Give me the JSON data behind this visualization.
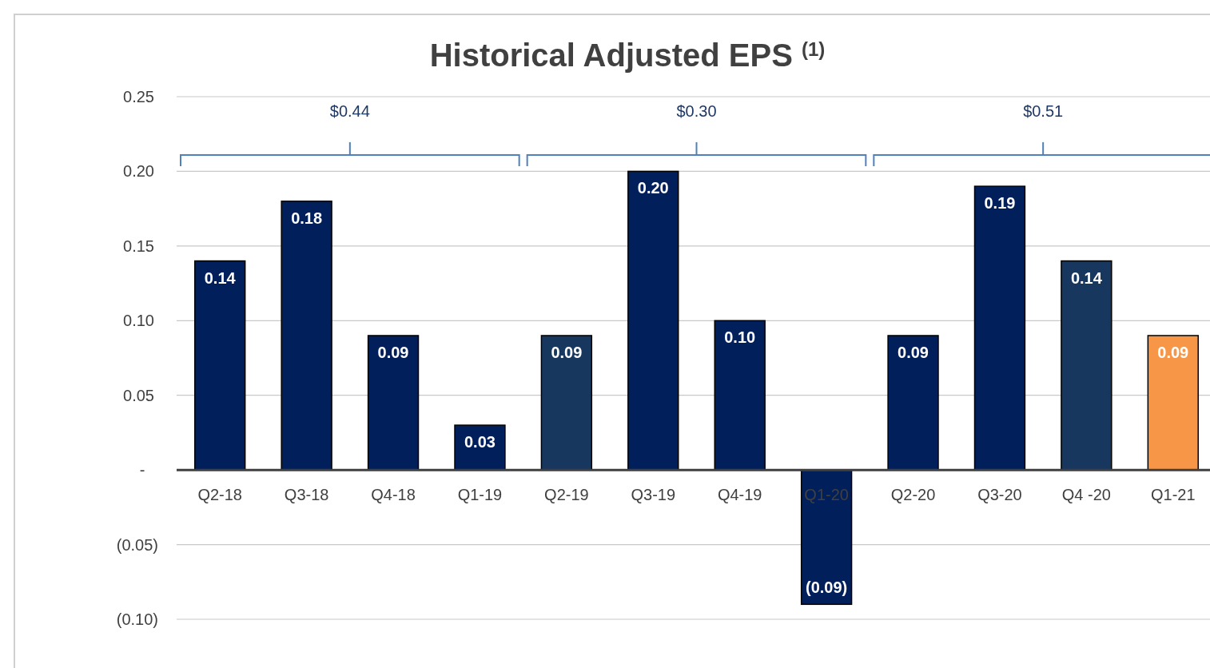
{
  "chart_data": {
    "type": "bar",
    "title": "Historical Adjusted EPS $^{(1)}$",
    "categories": [
      "Q2-18",
      "Q3-18",
      "Q4-18",
      "Q1-19",
      "Q2-19",
      "Q3-19",
      "Q4-19",
      "Q1-20",
      "Q2-20",
      "Q3-20",
      "Q4 -20",
      "Q1-21"
    ],
    "values": [
      0.14,
      0.18,
      0.09,
      0.03,
      0.09,
      0.2,
      0.1,
      -0.09,
      0.09,
      0.19,
      0.14,
      0.09
    ],
    "colors": [
      "#001f5b",
      "#001f5b",
      "#001f5b",
      "#001f5b",
      "#17375e",
      "#001f5b",
      "#001f5b",
      "#001f5b",
      "#001f5b",
      "#001f5b",
      "#17375e",
      "#f79646"
    ],
    "value_labels": [
      "0.14",
      "0.18",
      "0.09",
      "0.03",
      "0.09",
      "0.20",
      "0.10",
      "(0.09)",
      "0.09",
      "0.19",
      "0.14",
      "0.09"
    ],
    "ylim": [
      -0.1,
      0.25
    ],
    "yticks": [
      {
        "value": -0.1,
        "label": "(0.10)"
      },
      {
        "value": -0.05,
        "label": "(0.05)"
      },
      {
        "value": 0,
        "label": "-"
      },
      {
        "value": 0.05,
        "label": "0.05"
      },
      {
        "value": 0.1,
        "label": "0.10"
      },
      {
        "value": 0.15,
        "label": "0.15"
      },
      {
        "value": 0.2,
        "label": "0.20"
      },
      {
        "value": 0.25,
        "label": "0.25"
      }
    ],
    "grid": "y",
    "annotations": [
      "$0.44",
      "$0.30",
      "$0.51"
    ]
  }
}
